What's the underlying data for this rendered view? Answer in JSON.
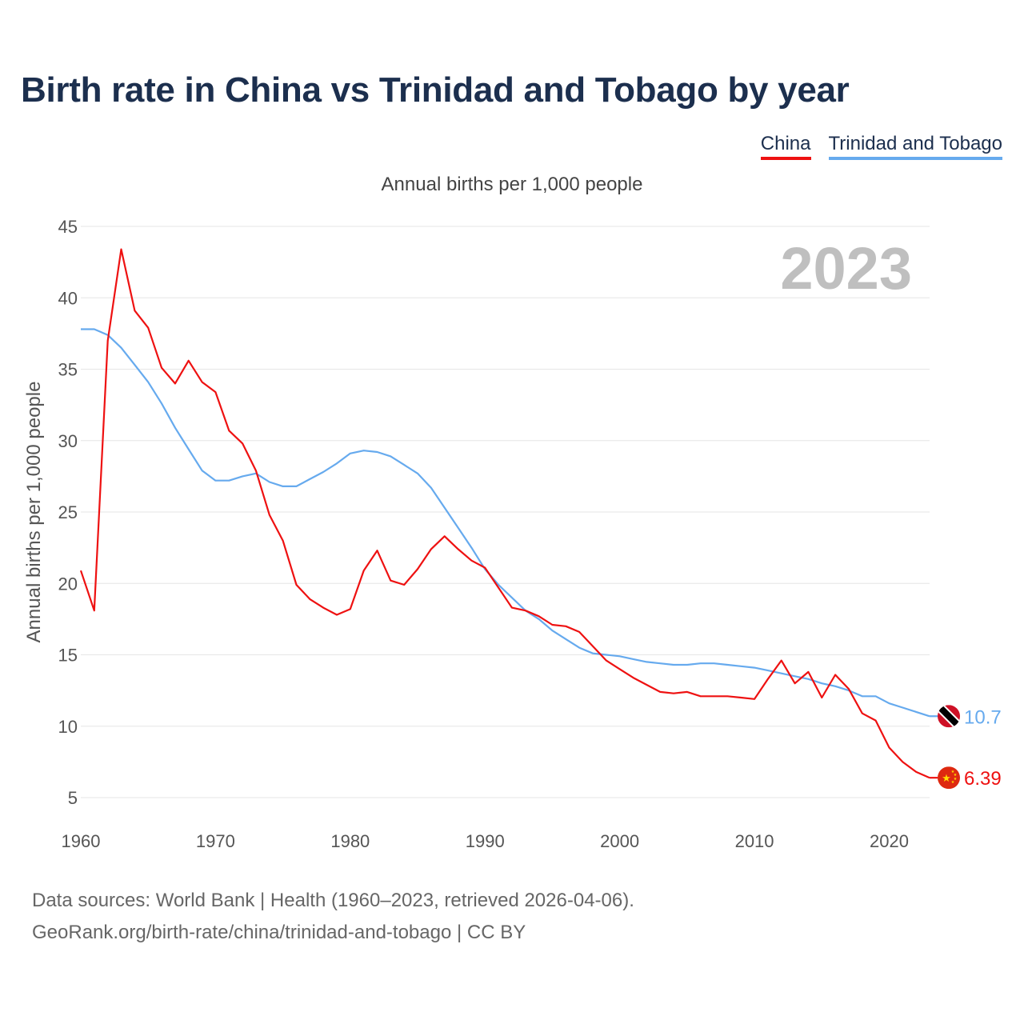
{
  "header": {
    "title": "Birth rate in China vs Trinidad and Tobago by year",
    "subtitle": "Annual births per 1,000 people"
  },
  "legend": [
    {
      "name": "China",
      "color": "#ee1111"
    },
    {
      "name": "Trinidad and Tobago",
      "color": "#66aaee"
    }
  ],
  "footer": {
    "line1": "Data sources: World Bank | Health (1960–2023, retrieved 2026-04-06).",
    "line2": "GeoRank.org/birth-rate/china/trinidad-and-tobago | CC BY"
  },
  "chart_data": {
    "type": "line",
    "title": "Birth rate in China vs Trinidad and Tobago by year",
    "ylabel": "Annual births per 1,000 people",
    "xlabel": "",
    "year_label": "2023",
    "xlim": [
      1960,
      2023
    ],
    "ylim": [
      5,
      45
    ],
    "x_ticks": [
      1960,
      1970,
      1980,
      1990,
      2000,
      2010,
      2020
    ],
    "y_ticks": [
      5,
      10,
      15,
      20,
      25,
      30,
      35,
      40,
      45
    ],
    "grid": true,
    "x": [
      1960,
      1961,
      1962,
      1963,
      1964,
      1965,
      1966,
      1967,
      1968,
      1969,
      1970,
      1971,
      1972,
      1973,
      1974,
      1975,
      1976,
      1977,
      1978,
      1979,
      1980,
      1981,
      1982,
      1983,
      1984,
      1985,
      1986,
      1987,
      1988,
      1989,
      1990,
      1991,
      1992,
      1993,
      1994,
      1995,
      1996,
      1997,
      1998,
      1999,
      2000,
      2001,
      2002,
      2003,
      2004,
      2005,
      2006,
      2007,
      2008,
      2009,
      2010,
      2011,
      2012,
      2013,
      2014,
      2015,
      2016,
      2017,
      2018,
      2019,
      2020,
      2021,
      2022,
      2023
    ],
    "series": [
      {
        "name": "China",
        "color": "#ee1111",
        "end_label": "6.39",
        "flag": "china-flag",
        "values": [
          20.9,
          18.1,
          37.0,
          43.4,
          39.1,
          37.9,
          35.1,
          34.0,
          35.6,
          34.1,
          33.4,
          30.7,
          29.8,
          27.9,
          24.8,
          23.0,
          19.9,
          18.9,
          18.3,
          17.8,
          18.2,
          20.9,
          22.3,
          20.2,
          19.9,
          21.0,
          22.4,
          23.3,
          22.4,
          21.6,
          21.1,
          19.7,
          18.3,
          18.1,
          17.7,
          17.1,
          17.0,
          16.6,
          15.6,
          14.6,
          14.0,
          13.4,
          12.9,
          12.4,
          12.3,
          12.4,
          12.1,
          12.1,
          12.1,
          12.0,
          11.9,
          13.3,
          14.6,
          13.0,
          13.8,
          12.0,
          13.6,
          12.6,
          10.9,
          10.4,
          8.5,
          7.5,
          6.8,
          6.39
        ]
      },
      {
        "name": "Trinidad and Tobago",
        "color": "#66aaee",
        "end_label": "10.7",
        "flag": "trinidad-and-tobago-flag",
        "values": [
          37.8,
          37.8,
          37.4,
          36.5,
          35.3,
          34.1,
          32.6,
          30.9,
          29.4,
          27.9,
          27.2,
          27.2,
          27.5,
          27.7,
          27.1,
          26.8,
          26.8,
          27.3,
          27.8,
          28.4,
          29.1,
          29.3,
          29.2,
          28.9,
          28.3,
          27.7,
          26.7,
          25.3,
          23.9,
          22.5,
          21.0,
          19.9,
          19.0,
          18.1,
          17.5,
          16.7,
          16.1,
          15.5,
          15.1,
          15.0,
          14.9,
          14.7,
          14.5,
          14.4,
          14.3,
          14.3,
          14.4,
          14.4,
          14.3,
          14.2,
          14.1,
          13.9,
          13.7,
          13.5,
          13.3,
          13.0,
          12.8,
          12.5,
          12.1,
          12.1,
          11.6,
          11.3,
          11.0,
          10.7
        ]
      }
    ]
  }
}
